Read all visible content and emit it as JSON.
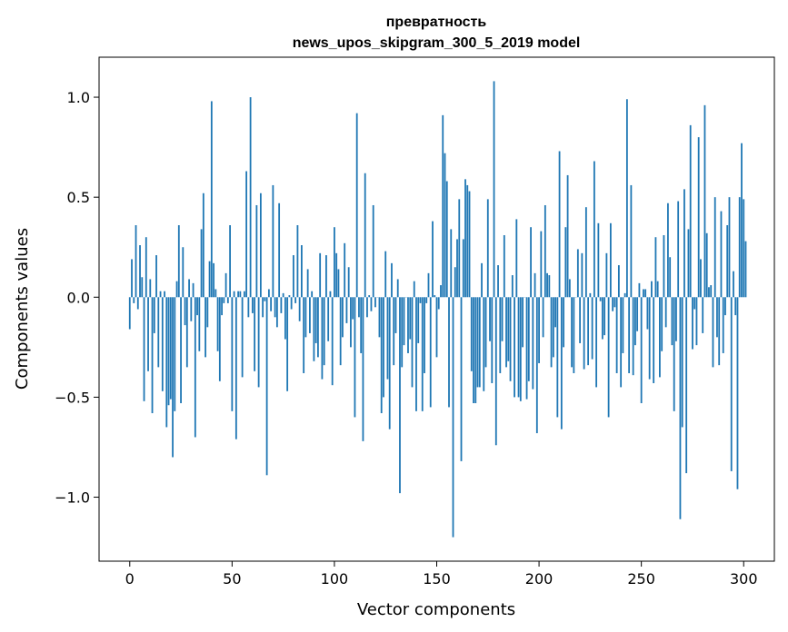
{
  "chart_data": {
    "type": "bar",
    "title": "превратность",
    "subtitle": "news_upos_skipgram_300_5_2019 model",
    "xlabel": "Vector components",
    "ylabel": "Components values",
    "xlim": [
      -15,
      315
    ],
    "ylim": [
      -1.32,
      1.2
    ],
    "xticks": [
      0,
      50,
      100,
      150,
      200,
      250,
      300
    ],
    "xtick_labels": [
      "0",
      "50",
      "100",
      "150",
      "200",
      "250",
      "300"
    ],
    "yticks": [
      -1.0,
      -0.5,
      0.0,
      0.5,
      1.0
    ],
    "ytick_labels": [
      "−1.0",
      "−0.5",
      "0.0",
      "0.5",
      "1.0"
    ],
    "bar_color": "#1f77b4",
    "grid": false,
    "values": [
      -0.16,
      0.19,
      -0.03,
      0.36,
      -0.06,
      0.26,
      0.1,
      -0.52,
      0.3,
      -0.37,
      0.09,
      -0.58,
      -0.18,
      0.21,
      -0.35,
      0.03,
      -0.47,
      0.03,
      -0.65,
      -0.54,
      -0.51,
      -0.8,
      -0.57,
      0.08,
      0.36,
      -0.53,
      0.25,
      -0.14,
      -0.35,
      0.09,
      -0.12,
      0.07,
      -0.7,
      -0.09,
      -0.27,
      0.34,
      0.52,
      -0.3,
      -0.15,
      0.18,
      0.98,
      0.17,
      0.04,
      -0.27,
      -0.42,
      -0.09,
      -0.03,
      0.12,
      -0.03,
      0.36,
      -0.57,
      0.03,
      -0.71,
      0.03,
      0.03,
      -0.4,
      0.03,
      0.63,
      -0.1,
      1.0,
      -0.08,
      -0.37,
      0.46,
      -0.45,
      0.52,
      -0.1,
      -0.02,
      -0.89,
      0.04,
      -0.07,
      0.56,
      -0.1,
      -0.15,
      0.47,
      -0.08,
      0.02,
      -0.21,
      -0.47,
      0.01,
      -0.06,
      0.21,
      -0.03,
      0.36,
      -0.12,
      0.26,
      -0.38,
      -0.2,
      0.14,
      -0.18,
      0.03,
      -0.32,
      -0.23,
      -0.3,
      0.22,
      -0.41,
      -0.34,
      0.21,
      -0.22,
      0.03,
      -0.44,
      0.35,
      0.22,
      0.14,
      -0.34,
      -0.2,
      0.27,
      -0.13,
      0.15,
      -0.25,
      -0.11,
      -0.6,
      0.92,
      -0.1,
      -0.28,
      -0.72,
      0.62,
      -0.1,
      0.01,
      -0.07,
      0.46,
      -0.05,
      0.0,
      -0.2,
      -0.58,
      -0.5,
      0.23,
      -0.41,
      -0.66,
      0.17,
      -0.34,
      -0.18,
      0.09,
      -0.98,
      -0.35,
      -0.24,
      0.0,
      -0.28,
      -0.21,
      -0.45,
      0.08,
      -0.57,
      -0.23,
      -0.03,
      -0.57,
      -0.38,
      -0.03,
      0.12,
      -0.55,
      0.38,
      0.01,
      -0.3,
      -0.06,
      0.06,
      0.91,
      0.72,
      0.58,
      -0.55,
      0.34,
      -1.2,
      0.15,
      0.29,
      0.49,
      -0.82,
      0.29,
      0.59,
      0.56,
      0.53,
      -0.37,
      -0.53,
      -0.53,
      -0.45,
      -0.45,
      0.17,
      -0.47,
      -0.35,
      0.49,
      -0.22,
      -0.43,
      1.08,
      -0.74,
      0.16,
      -0.38,
      -0.22,
      0.31,
      -0.35,
      -0.32,
      -0.42,
      0.11,
      -0.5,
      0.39,
      -0.5,
      -0.52,
      -0.25,
      0.0,
      -0.51,
      -0.42,
      0.35,
      -0.46,
      0.12,
      -0.68,
      -0.33,
      0.33,
      -0.2,
      0.46,
      0.12,
      0.11,
      -0.35,
      -0.3,
      -0.15,
      -0.6,
      0.73,
      -0.66,
      -0.25,
      0.35,
      0.61,
      0.09,
      -0.35,
      -0.38,
      0.0,
      0.24,
      -0.23,
      0.22,
      -0.36,
      0.45,
      -0.34,
      0.02,
      -0.31,
      0.68,
      -0.45,
      0.37,
      -0.02,
      -0.21,
      -0.19,
      0.22,
      -0.6,
      0.37,
      -0.07,
      -0.05,
      -0.38,
      0.16,
      -0.45,
      -0.28,
      0.02,
      0.99,
      -0.38,
      0.56,
      -0.39,
      -0.24,
      -0.17,
      0.07,
      -0.53,
      0.04,
      0.04,
      -0.16,
      -0.41,
      0.08,
      -0.43,
      0.3,
      0.08,
      -0.4,
      -0.27,
      0.31,
      -0.15,
      0.47,
      0.2,
      -0.24,
      -0.57,
      -0.22,
      0.48,
      -1.11,
      -0.65,
      0.54,
      -0.88,
      0.34,
      0.86,
      -0.26,
      -0.06,
      -0.24,
      0.8,
      0.19,
      -0.18,
      0.96,
      0.32,
      0.05,
      0.06,
      -0.35,
      0.5,
      -0.2,
      -0.34,
      0.43,
      -0.28,
      -0.09,
      0.36,
      0.5,
      -0.87,
      0.13,
      -0.09,
      -0.96,
      0.5,
      0.77,
      0.49,
      0.28
    ]
  }
}
